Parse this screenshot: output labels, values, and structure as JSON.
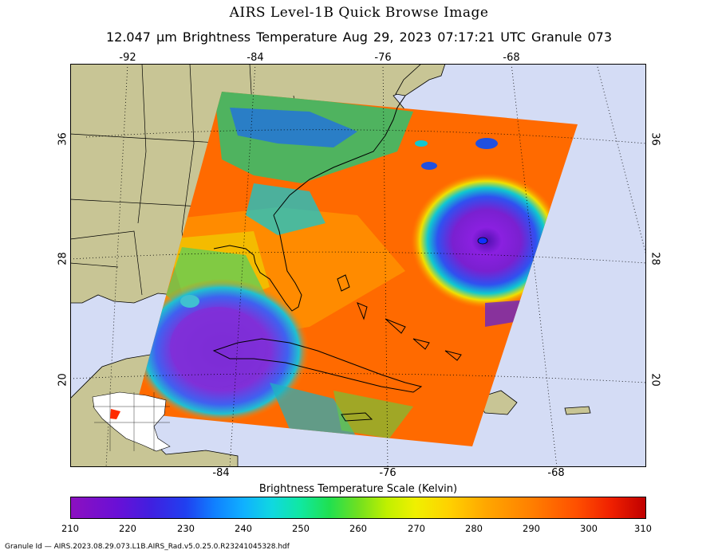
{
  "header": {
    "title": "AIRS Level-1B Quick Browse Image",
    "subtitle": "12.047 μm Brightness Temperature   Aug 29, 2023 07:17:21 UTC  Granule 073"
  },
  "axes": {
    "top_lon": [
      "-92",
      "-84",
      "-76",
      "-68"
    ],
    "bottom_lon": [
      "-84",
      "-76",
      "-68"
    ],
    "left_lat": [
      "36",
      "28",
      "20"
    ],
    "right_lat": [
      "36",
      "28",
      "20"
    ]
  },
  "colorbar": {
    "title": "Brightness Temperature Scale (Kelvin)",
    "labels": [
      "210",
      "220",
      "230",
      "240",
      "250",
      "260",
      "270",
      "280",
      "290",
      "300",
      "310"
    ]
  },
  "footer": {
    "granule_id": "Granule Id — AIRS.2023.08.29.073.L1B.AIRS_Rad.v5.0.25.0.R23241045328.hdf"
  },
  "colors": {
    "ocean": "#d4dcf5",
    "land": "#c8c595",
    "warm": "#ff6a00",
    "hurricane_core": "#7a20d0"
  }
}
